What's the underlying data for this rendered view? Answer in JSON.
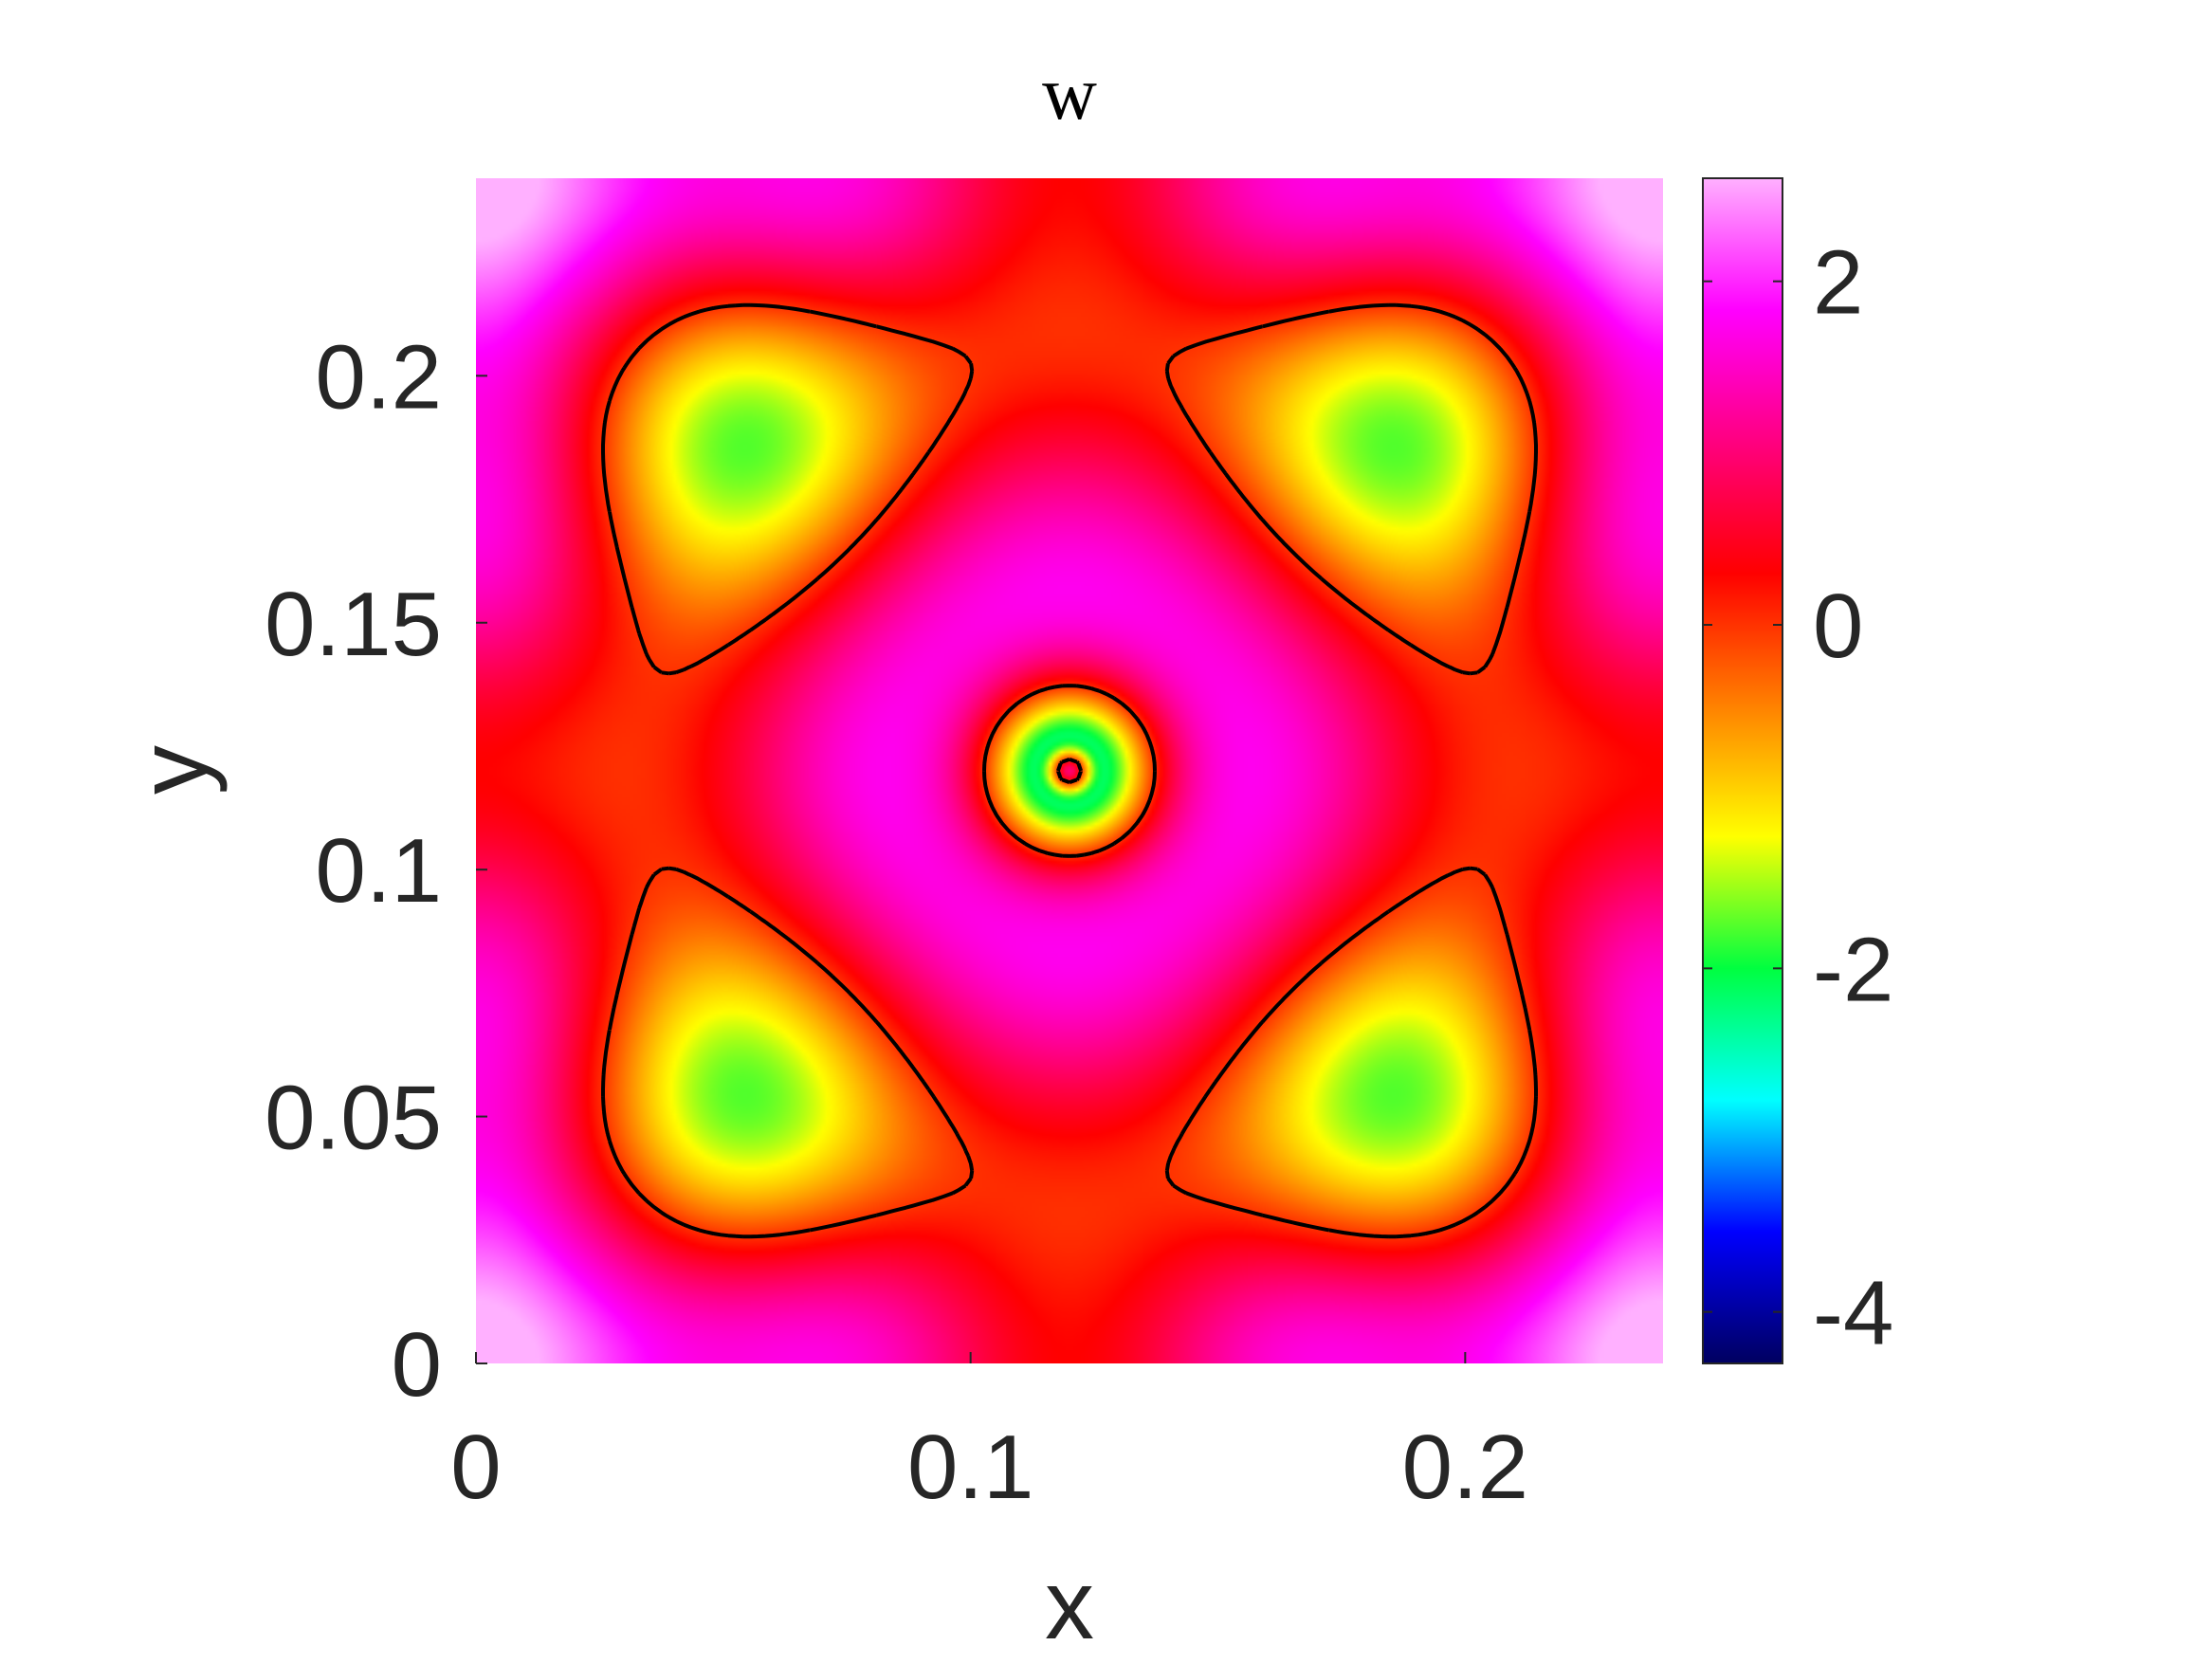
{
  "chart_data": {
    "type": "heatmap",
    "title": "w",
    "xlabel": "x",
    "ylabel": "y",
    "xlim": [
      0,
      0.24
    ],
    "ylim": [
      0,
      0.24
    ],
    "xticks": [
      {
        "value": 0,
        "label": "0"
      },
      {
        "value": 0.1,
        "label": "0.1"
      },
      {
        "value": 0.2,
        "label": "0.2"
      }
    ],
    "yticks": [
      {
        "value": 0,
        "label": "0"
      },
      {
        "value": 0.05,
        "label": "0.05"
      },
      {
        "value": 0.1,
        "label": "0.1"
      },
      {
        "value": 0.15,
        "label": "0.15"
      },
      {
        "value": 0.2,
        "label": "0.2"
      }
    ],
    "colorbar": {
      "range": [
        -4.3,
        2.6
      ],
      "ticks": [
        {
          "value": 2,
          "label": "2"
        },
        {
          "value": 0,
          "label": "0"
        },
        {
          "value": -2,
          "label": "-2"
        },
        {
          "value": -4,
          "label": "-4"
        }
      ],
      "colormap": [
        "#000060",
        "#0000ff",
        "#00ffff",
        "#00ff40",
        "#ffff00",
        "#ff8000",
        "#ff0000",
        "#ff0080",
        "#ff00ff",
        "#ffb0ff"
      ]
    },
    "zero_contour": true,
    "contour_color": "#000000",
    "grid": false,
    "legend": "none"
  }
}
